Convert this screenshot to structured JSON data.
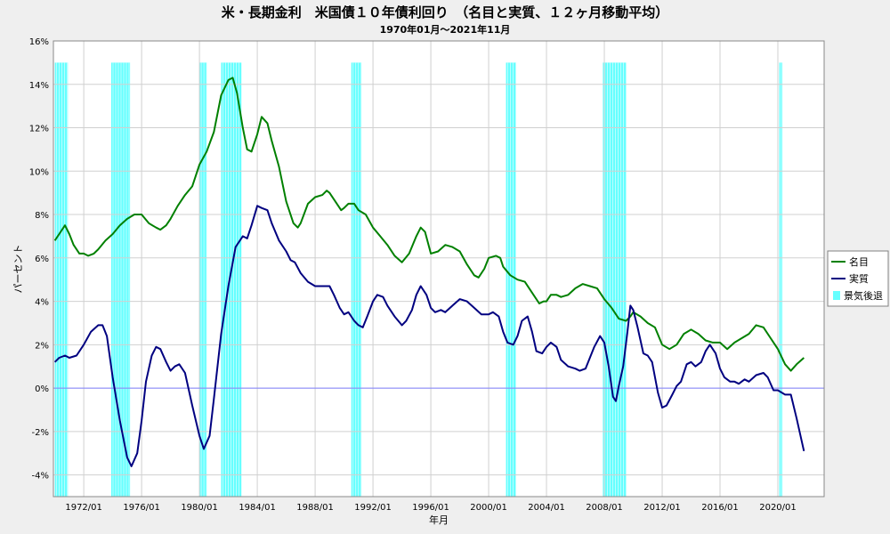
{
  "chart_data": {
    "type": "line",
    "title": "米・長期金利　米国債１０年債利回り　（名目と実質、１２ヶ月移動平均）",
    "subtitle": "1970年01月～2021年11月",
    "xlabel": "年月",
    "ylabel": "パーセント",
    "ylim": [
      -5,
      16
    ],
    "xlim": [
      1969.9,
      2023.2
    ],
    "yticks": [
      -4,
      -2,
      0,
      2,
      4,
      6,
      8,
      10,
      12,
      14,
      16
    ],
    "ytick_labels": [
      "-4%",
      "-2%",
      "0%",
      "2%",
      "4%",
      "6%",
      "8%",
      "10%",
      "12%",
      "14%",
      "16%"
    ],
    "xticks": [
      1972,
      1976,
      1980,
      1984,
      1988,
      1992,
      1996,
      2000,
      2004,
      2008,
      2012,
      2016,
      2020
    ],
    "xtick_labels": [
      "1972/01",
      "1976/01",
      "1980/01",
      "1984/01",
      "1988/01",
      "1992/01",
      "1996/01",
      "2000/01",
      "2004/01",
      "2008/01",
      "2012/01",
      "2016/01",
      "2020/01"
    ],
    "grid": true,
    "legend_position": "right",
    "legend": [
      "名目",
      "実質",
      "景気後退"
    ],
    "recessions": [
      [
        1970.0,
        1970.9
      ],
      [
        1973.9,
        1975.2
      ],
      [
        1980.0,
        1980.5
      ],
      [
        1981.5,
        1982.9
      ],
      [
        1990.5,
        1991.2
      ],
      [
        2001.2,
        2001.9
      ],
      [
        2007.9,
        2009.5
      ],
      [
        2020.1,
        2020.3
      ]
    ],
    "series": [
      {
        "name": "名目",
        "color": "#008000",
        "points": [
          [
            1970.0,
            6.8
          ],
          [
            1970.3,
            7.1
          ],
          [
            1970.7,
            7.5
          ],
          [
            1971.0,
            7.1
          ],
          [
            1971.3,
            6.6
          ],
          [
            1971.7,
            6.2
          ],
          [
            1972.0,
            6.2
          ],
          [
            1972.3,
            6.1
          ],
          [
            1972.7,
            6.2
          ],
          [
            1973.0,
            6.4
          ],
          [
            1973.5,
            6.8
          ],
          [
            1974.0,
            7.1
          ],
          [
            1974.5,
            7.5
          ],
          [
            1975.0,
            7.8
          ],
          [
            1975.5,
            8.0
          ],
          [
            1976.0,
            8.0
          ],
          [
            1976.5,
            7.6
          ],
          [
            1977.0,
            7.4
          ],
          [
            1977.3,
            7.3
          ],
          [
            1977.7,
            7.5
          ],
          [
            1978.0,
            7.8
          ],
          [
            1978.5,
            8.4
          ],
          [
            1979.0,
            8.9
          ],
          [
            1979.5,
            9.3
          ],
          [
            1980.0,
            10.3
          ],
          [
            1980.5,
            10.9
          ],
          [
            1981.0,
            11.8
          ],
          [
            1981.5,
            13.5
          ],
          [
            1982.0,
            14.2
          ],
          [
            1982.3,
            14.3
          ],
          [
            1982.6,
            13.6
          ],
          [
            1983.0,
            12.0
          ],
          [
            1983.3,
            11.0
          ],
          [
            1983.6,
            10.9
          ],
          [
            1984.0,
            11.7
          ],
          [
            1984.3,
            12.5
          ],
          [
            1984.7,
            12.2
          ],
          [
            1985.0,
            11.4
          ],
          [
            1985.5,
            10.2
          ],
          [
            1986.0,
            8.6
          ],
          [
            1986.5,
            7.6
          ],
          [
            1986.8,
            7.4
          ],
          [
            1987.0,
            7.6
          ],
          [
            1987.5,
            8.5
          ],
          [
            1988.0,
            8.8
          ],
          [
            1988.5,
            8.9
          ],
          [
            1988.8,
            9.1
          ],
          [
            1989.0,
            9.0
          ],
          [
            1989.5,
            8.5
          ],
          [
            1989.8,
            8.2
          ],
          [
            1990.0,
            8.3
          ],
          [
            1990.3,
            8.5
          ],
          [
            1990.7,
            8.5
          ],
          [
            1991.0,
            8.2
          ],
          [
            1991.5,
            8.0
          ],
          [
            1992.0,
            7.4
          ],
          [
            1992.5,
            7.0
          ],
          [
            1993.0,
            6.6
          ],
          [
            1993.5,
            6.1
          ],
          [
            1994.0,
            5.8
          ],
          [
            1994.5,
            6.2
          ],
          [
            1995.0,
            7.0
          ],
          [
            1995.3,
            7.4
          ],
          [
            1995.6,
            7.2
          ],
          [
            1996.0,
            6.2
          ],
          [
            1996.5,
            6.3
          ],
          [
            1997.0,
            6.6
          ],
          [
            1997.5,
            6.5
          ],
          [
            1998.0,
            6.3
          ],
          [
            1998.5,
            5.7
          ],
          [
            1999.0,
            5.2
          ],
          [
            1999.3,
            5.1
          ],
          [
            1999.7,
            5.5
          ],
          [
            2000.0,
            6.0
          ],
          [
            2000.5,
            6.1
          ],
          [
            2000.8,
            6.0
          ],
          [
            2001.0,
            5.6
          ],
          [
            2001.5,
            5.2
          ],
          [
            2002.0,
            5.0
          ],
          [
            2002.5,
            4.9
          ],
          [
            2003.0,
            4.4
          ],
          [
            2003.5,
            3.9
          ],
          [
            2003.8,
            4.0
          ],
          [
            2004.0,
            4.0
          ],
          [
            2004.3,
            4.3
          ],
          [
            2004.7,
            4.3
          ],
          [
            2005.0,
            4.2
          ],
          [
            2005.5,
            4.3
          ],
          [
            2006.0,
            4.6
          ],
          [
            2006.5,
            4.8
          ],
          [
            2007.0,
            4.7
          ],
          [
            2007.5,
            4.6
          ],
          [
            2008.0,
            4.1
          ],
          [
            2008.5,
            3.7
          ],
          [
            2009.0,
            3.2
          ],
          [
            2009.5,
            3.1
          ],
          [
            2009.8,
            3.3
          ],
          [
            2010.0,
            3.5
          ],
          [
            2010.5,
            3.3
          ],
          [
            2011.0,
            3.0
          ],
          [
            2011.5,
            2.8
          ],
          [
            2012.0,
            2.0
          ],
          [
            2012.5,
            1.8
          ],
          [
            2013.0,
            2.0
          ],
          [
            2013.5,
            2.5
          ],
          [
            2014.0,
            2.7
          ],
          [
            2014.5,
            2.5
          ],
          [
            2015.0,
            2.2
          ],
          [
            2015.5,
            2.1
          ],
          [
            2016.0,
            2.1
          ],
          [
            2016.5,
            1.8
          ],
          [
            2017.0,
            2.1
          ],
          [
            2017.5,
            2.3
          ],
          [
            2018.0,
            2.5
          ],
          [
            2018.5,
            2.9
          ],
          [
            2019.0,
            2.8
          ],
          [
            2019.5,
            2.3
          ],
          [
            2020.0,
            1.8
          ],
          [
            2020.5,
            1.1
          ],
          [
            2020.9,
            0.8
          ],
          [
            2021.3,
            1.1
          ],
          [
            2021.8,
            1.4
          ]
        ]
      },
      {
        "name": "実質",
        "color": "#000080",
        "points": [
          [
            1970.0,
            1.2
          ],
          [
            1970.3,
            1.4
          ],
          [
            1970.7,
            1.5
          ],
          [
            1971.0,
            1.4
          ],
          [
            1971.5,
            1.5
          ],
          [
            1972.0,
            2.0
          ],
          [
            1972.5,
            2.6
          ],
          [
            1973.0,
            2.9
          ],
          [
            1973.3,
            2.9
          ],
          [
            1973.6,
            2.4
          ],
          [
            1974.0,
            0.5
          ],
          [
            1974.5,
            -1.5
          ],
          [
            1975.0,
            -3.2
          ],
          [
            1975.3,
            -3.6
          ],
          [
            1975.7,
            -3.0
          ],
          [
            1976.0,
            -1.5
          ],
          [
            1976.3,
            0.3
          ],
          [
            1976.7,
            1.5
          ],
          [
            1977.0,
            1.9
          ],
          [
            1977.3,
            1.8
          ],
          [
            1977.7,
            1.2
          ],
          [
            1978.0,
            0.8
          ],
          [
            1978.3,
            1.0
          ],
          [
            1978.6,
            1.1
          ],
          [
            1979.0,
            0.7
          ],
          [
            1979.5,
            -0.8
          ],
          [
            1980.0,
            -2.2
          ],
          [
            1980.3,
            -2.8
          ],
          [
            1980.7,
            -2.2
          ],
          [
            1981.0,
            -0.5
          ],
          [
            1981.5,
            2.5
          ],
          [
            1982.0,
            4.7
          ],
          [
            1982.5,
            6.5
          ],
          [
            1983.0,
            7.0
          ],
          [
            1983.3,
            6.9
          ],
          [
            1983.6,
            7.5
          ],
          [
            1984.0,
            8.4
          ],
          [
            1984.3,
            8.3
          ],
          [
            1984.7,
            8.2
          ],
          [
            1985.0,
            7.6
          ],
          [
            1985.5,
            6.8
          ],
          [
            1986.0,
            6.3
          ],
          [
            1986.3,
            5.9
          ],
          [
            1986.6,
            5.8
          ],
          [
            1987.0,
            5.3
          ],
          [
            1987.5,
            4.9
          ],
          [
            1988.0,
            4.7
          ],
          [
            1988.5,
            4.7
          ],
          [
            1989.0,
            4.7
          ],
          [
            1989.3,
            4.3
          ],
          [
            1989.7,
            3.7
          ],
          [
            1990.0,
            3.4
          ],
          [
            1990.3,
            3.5
          ],
          [
            1990.7,
            3.1
          ],
          [
            1991.0,
            2.9
          ],
          [
            1991.3,
            2.8
          ],
          [
            1991.6,
            3.3
          ],
          [
            1992.0,
            4.0
          ],
          [
            1992.3,
            4.3
          ],
          [
            1992.7,
            4.2
          ],
          [
            1993.0,
            3.8
          ],
          [
            1993.5,
            3.3
          ],
          [
            1994.0,
            2.9
          ],
          [
            1994.3,
            3.1
          ],
          [
            1994.7,
            3.6
          ],
          [
            1995.0,
            4.3
          ],
          [
            1995.3,
            4.7
          ],
          [
            1995.7,
            4.3
          ],
          [
            1996.0,
            3.7
          ],
          [
            1996.3,
            3.5
          ],
          [
            1996.7,
            3.6
          ],
          [
            1997.0,
            3.5
          ],
          [
            1997.5,
            3.8
          ],
          [
            1998.0,
            4.1
          ],
          [
            1998.5,
            4.0
          ],
          [
            1999.0,
            3.7
          ],
          [
            1999.5,
            3.4
          ],
          [
            2000.0,
            3.4
          ],
          [
            2000.3,
            3.5
          ],
          [
            2000.7,
            3.3
          ],
          [
            2001.0,
            2.6
          ],
          [
            2001.3,
            2.1
          ],
          [
            2001.7,
            2.0
          ],
          [
            2002.0,
            2.4
          ],
          [
            2002.3,
            3.1
          ],
          [
            2002.7,
            3.3
          ],
          [
            2003.0,
            2.6
          ],
          [
            2003.3,
            1.7
          ],
          [
            2003.7,
            1.6
          ],
          [
            2004.0,
            1.9
          ],
          [
            2004.3,
            2.1
          ],
          [
            2004.7,
            1.9
          ],
          [
            2005.0,
            1.3
          ],
          [
            2005.5,
            1.0
          ],
          [
            2006.0,
            0.9
          ],
          [
            2006.3,
            0.8
          ],
          [
            2006.7,
            0.9
          ],
          [
            2007.0,
            1.4
          ],
          [
            2007.3,
            1.9
          ],
          [
            2007.7,
            2.4
          ],
          [
            2008.0,
            2.1
          ],
          [
            2008.3,
            1.0
          ],
          [
            2008.6,
            -0.4
          ],
          [
            2008.8,
            -0.6
          ],
          [
            2009.0,
            0.1
          ],
          [
            2009.3,
            1.0
          ],
          [
            2009.6,
            2.6
          ],
          [
            2009.8,
            3.8
          ],
          [
            2010.0,
            3.6
          ],
          [
            2010.3,
            2.8
          ],
          [
            2010.7,
            1.6
          ],
          [
            2011.0,
            1.5
          ],
          [
            2011.3,
            1.2
          ],
          [
            2011.7,
            -0.2
          ],
          [
            2012.0,
            -0.9
          ],
          [
            2012.3,
            -0.8
          ],
          [
            2012.7,
            -0.3
          ],
          [
            2013.0,
            0.1
          ],
          [
            2013.3,
            0.3
          ],
          [
            2013.7,
            1.1
          ],
          [
            2014.0,
            1.2
          ],
          [
            2014.3,
            1.0
          ],
          [
            2014.7,
            1.2
          ],
          [
            2015.0,
            1.7
          ],
          [
            2015.3,
            2.0
          ],
          [
            2015.7,
            1.6
          ],
          [
            2016.0,
            0.9
          ],
          [
            2016.3,
            0.5
          ],
          [
            2016.7,
            0.3
          ],
          [
            2017.0,
            0.3
          ],
          [
            2017.3,
            0.2
          ],
          [
            2017.7,
            0.4
          ],
          [
            2018.0,
            0.3
          ],
          [
            2018.5,
            0.6
          ],
          [
            2019.0,
            0.7
          ],
          [
            2019.3,
            0.5
          ],
          [
            2019.7,
            -0.1
          ],
          [
            2020.0,
            -0.1
          ],
          [
            2020.5,
            -0.3
          ],
          [
            2020.9,
            -0.3
          ],
          [
            2021.3,
            -1.4
          ],
          [
            2021.8,
            -2.9
          ]
        ]
      }
    ]
  }
}
